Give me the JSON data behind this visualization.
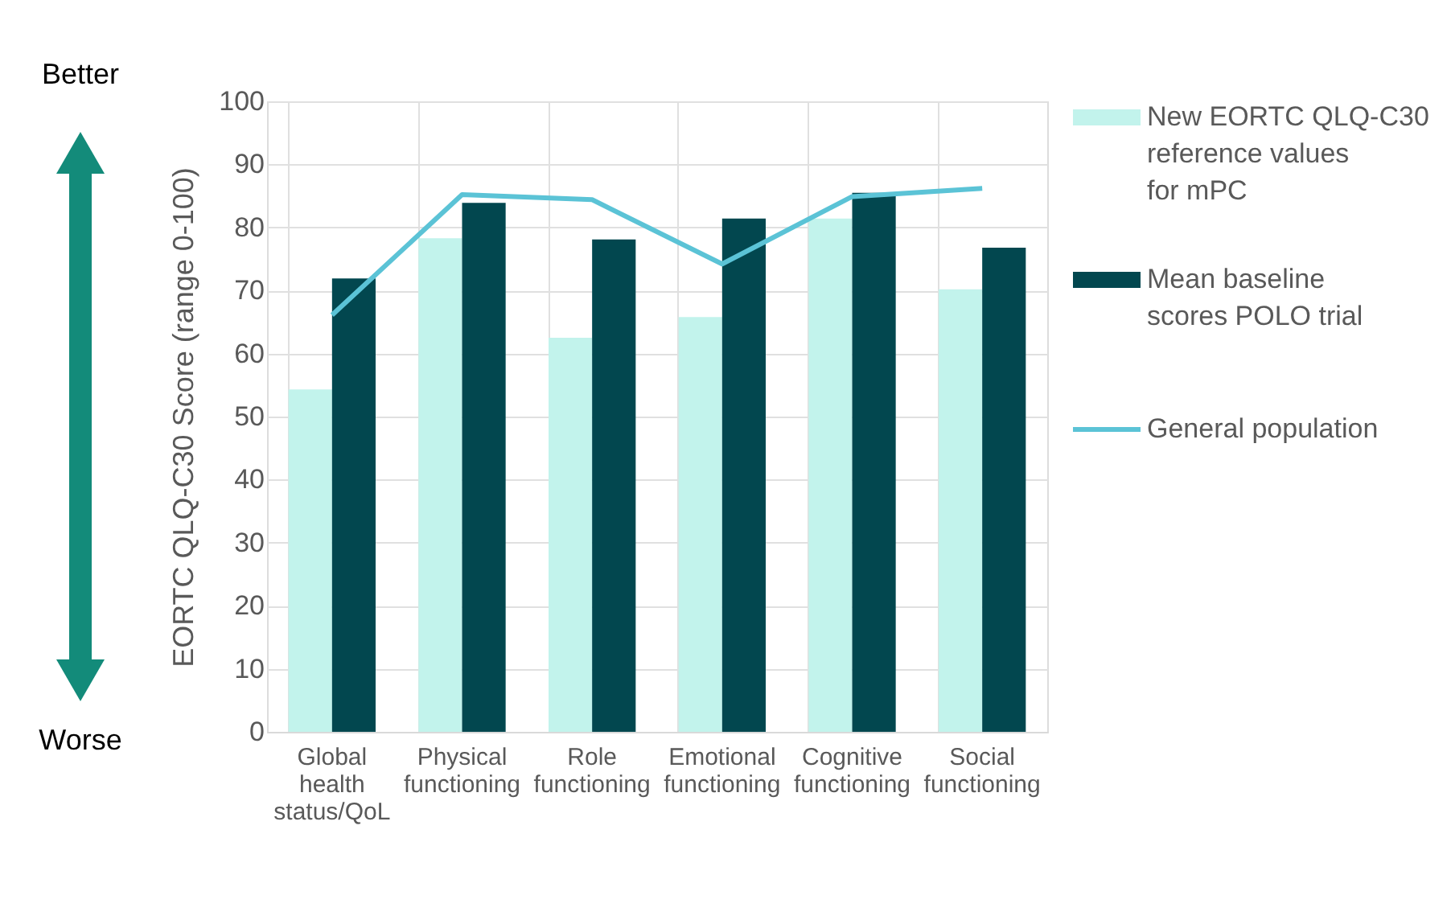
{
  "chart_data": {
    "type": "bar",
    "ylabel": "EORTC QLQ-C30 Score (range 0-100)",
    "categories": [
      "Global health status/QoL",
      "Physical functioning",
      "Role functioning",
      "Emotional functioning",
      "Cognitive functioning",
      "Social functioning"
    ],
    "series": [
      {
        "name": "New EORTC QLQ-C30 reference values for mPC",
        "color": "#c2f3ec",
        "values": [
          54.3,
          78.3,
          62.5,
          65.8,
          81.4,
          70.2
        ]
      },
      {
        "name": "Mean baseline scores POLO trial",
        "color": "#02474f",
        "values": [
          71.9,
          83.9,
          78.1,
          81.4,
          85.5,
          76.8
        ]
      },
      {
        "name": "General population",
        "type": "line",
        "color": "#5bc3d6",
        "values": [
          66.1,
          85.2,
          84.4,
          74.2,
          84.9,
          86.2
        ]
      }
    ],
    "ylim": [
      0,
      100
    ],
    "yticks": [
      0,
      10,
      20,
      30,
      40,
      50,
      60,
      70,
      80,
      90,
      100
    ],
    "grid": true,
    "legend": "right",
    "marker": "none",
    "annotations": [
      "Better",
      "Worse"
    ]
  }
}
